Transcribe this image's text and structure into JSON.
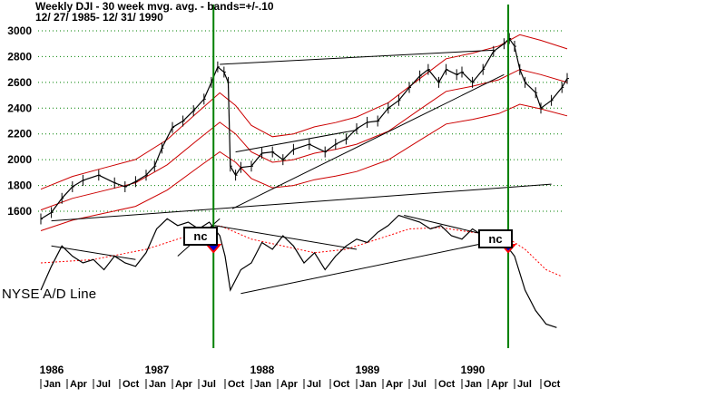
{
  "chart_data": [
    {
      "type": "line",
      "title": "Weekly DJI - 30 week mvg. avg. - bands=+/-.10",
      "subtitle": "12/ 27/ 1985- 12/ 31/ 1990",
      "series": [
        {
          "values": [
            [
              1986.0,
              1540
            ],
            [
              1986.1,
              1590
            ],
            [
              1986.2,
              1700
            ],
            [
              1986.3,
              1790
            ],
            [
              1986.4,
              1840
            ],
            [
              1986.55,
              1880
            ],
            [
              1986.7,
              1820
            ],
            [
              1986.8,
              1790
            ],
            [
              1986.9,
              1830
            ],
            [
              1987.0,
              1880
            ],
            [
              1987.08,
              1950
            ],
            [
              1987.15,
              2090
            ],
            [
              1987.25,
              2250
            ],
            [
              1987.35,
              2300
            ],
            [
              1987.45,
              2380
            ],
            [
              1987.55,
              2470
            ],
            [
              1987.62,
              2600
            ],
            [
              1987.68,
              2720
            ],
            [
              1987.74,
              2680
            ],
            [
              1987.78,
              2600
            ],
            [
              1987.8,
              1950
            ],
            [
              1987.85,
              1880
            ],
            [
              1987.9,
              1940
            ],
            [
              1988.0,
              1950
            ],
            [
              1988.1,
              2050
            ],
            [
              1988.2,
              2060
            ],
            [
              1988.3,
              2000
            ],
            [
              1988.4,
              2080
            ],
            [
              1988.55,
              2120
            ],
            [
              1988.7,
              2060
            ],
            [
              1988.8,
              2120
            ],
            [
              1988.9,
              2160
            ],
            [
              1989.0,
              2240
            ],
            [
              1989.1,
              2290
            ],
            [
              1989.2,
              2300
            ],
            [
              1989.3,
              2400
            ],
            [
              1989.4,
              2460
            ],
            [
              1989.5,
              2560
            ],
            [
              1989.6,
              2650
            ],
            [
              1989.68,
              2700
            ],
            [
              1989.78,
              2600
            ],
            [
              1989.85,
              2700
            ],
            [
              1989.95,
              2660
            ],
            [
              1990.0,
              2680
            ],
            [
              1990.1,
              2600
            ],
            [
              1990.2,
              2700
            ],
            [
              1990.3,
              2840
            ],
            [
              1990.4,
              2900
            ],
            [
              1990.45,
              2940
            ],
            [
              1990.5,
              2880
            ],
            [
              1990.55,
              2700
            ],
            [
              1990.6,
              2600
            ],
            [
              1990.7,
              2520
            ],
            [
              1990.75,
              2400
            ],
            [
              1990.85,
              2460
            ],
            [
              1990.95,
              2560
            ],
            [
              1991.0,
              2630
            ]
          ]
        },
        {
          "values": [
            [
              1986.0,
              1610
            ],
            [
              1986.3,
              1700
            ],
            [
              1986.6,
              1760
            ],
            [
              1986.9,
              1820
            ],
            [
              1987.2,
              1960
            ],
            [
              1987.5,
              2160
            ],
            [
              1987.7,
              2290
            ],
            [
              1987.85,
              2200
            ],
            [
              1988.0,
              2060
            ],
            [
              1988.2,
              1980
            ],
            [
              1988.4,
              2000
            ],
            [
              1988.6,
              2050
            ],
            [
              1988.8,
              2080
            ],
            [
              1989.0,
              2120
            ],
            [
              1989.3,
              2220
            ],
            [
              1989.6,
              2390
            ],
            [
              1989.85,
              2530
            ],
            [
              1990.1,
              2570
            ],
            [
              1990.35,
              2620
            ],
            [
              1990.55,
              2700
            ],
            [
              1990.75,
              2660
            ],
            [
              1991.0,
              2600
            ]
          ]
        },
        {
          "values": [
            [
              1986.0,
              1771
            ],
            [
              1986.3,
              1870
            ],
            [
              1986.6,
              1936
            ],
            [
              1986.9,
              2002
            ],
            [
              1987.2,
              2156
            ],
            [
              1987.5,
              2376
            ],
            [
              1987.7,
              2519
            ],
            [
              1987.85,
              2420
            ],
            [
              1988.0,
              2266
            ],
            [
              1988.2,
              2178
            ],
            [
              1988.4,
              2200
            ],
            [
              1988.6,
              2255
            ],
            [
              1988.8,
              2288
            ],
            [
              1989.0,
              2332
            ],
            [
              1989.3,
              2442
            ],
            [
              1989.6,
              2629
            ],
            [
              1989.85,
              2783
            ],
            [
              1990.1,
              2827
            ],
            [
              1990.35,
              2882
            ],
            [
              1990.55,
              2970
            ],
            [
              1990.75,
              2926
            ],
            [
              1991.0,
              2860
            ]
          ]
        },
        {
          "values": [
            [
              1986.0,
              1449
            ],
            [
              1986.3,
              1530
            ],
            [
              1986.6,
              1584
            ],
            [
              1986.9,
              1638
            ],
            [
              1987.2,
              1764
            ],
            [
              1987.5,
              1944
            ],
            [
              1987.7,
              2061
            ],
            [
              1987.85,
              1980
            ],
            [
              1988.0,
              1854
            ],
            [
              1988.2,
              1782
            ],
            [
              1988.4,
              1800
            ],
            [
              1988.6,
              1845
            ],
            [
              1988.8,
              1872
            ],
            [
              1989.0,
              1908
            ],
            [
              1989.3,
              1998
            ],
            [
              1989.6,
              2151
            ],
            [
              1989.85,
              2277
            ],
            [
              1990.1,
              2313
            ],
            [
              1990.35,
              2358
            ],
            [
              1990.55,
              2430
            ],
            [
              1990.75,
              2394
            ],
            [
              1991.0,
              2340
            ]
          ]
        }
      ],
      "ylim": [
        1500,
        3050
      ],
      "yticks": [
        1600,
        1800,
        2000,
        2200,
        2400,
        2600,
        2800,
        3000
      ],
      "xlim": [
        1985.75,
        1991.0
      ],
      "grid": "horizontal dotted green"
    },
    {
      "type": "line",
      "ylabel": "NYSE A/D Line",
      "series": [
        {
          "values": [
            [
              1986.0,
              -20
            ],
            [
              1986.1,
              15
            ],
            [
              1986.2,
              45
            ],
            [
              1986.3,
              30
            ],
            [
              1986.4,
              20
            ],
            [
              1986.5,
              25
            ],
            [
              1986.6,
              10
            ],
            [
              1986.7,
              30
            ],
            [
              1986.8,
              20
            ],
            [
              1986.9,
              15
            ],
            [
              1987.0,
              35
            ],
            [
              1987.1,
              70
            ],
            [
              1987.2,
              85
            ],
            [
              1987.3,
              75
            ],
            [
              1987.4,
              80
            ],
            [
              1987.5,
              70
            ],
            [
              1987.6,
              80
            ],
            [
              1987.7,
              60
            ],
            [
              1987.75,
              30
            ],
            [
              1987.8,
              -20
            ],
            [
              1987.9,
              10
            ],
            [
              1988.0,
              20
            ],
            [
              1988.1,
              50
            ],
            [
              1988.2,
              40
            ],
            [
              1988.3,
              60
            ],
            [
              1988.4,
              45
            ],
            [
              1988.5,
              20
            ],
            [
              1988.6,
              35
            ],
            [
              1988.7,
              10
            ],
            [
              1988.8,
              30
            ],
            [
              1988.9,
              45
            ],
            [
              1989.0,
              55
            ],
            [
              1989.1,
              50
            ],
            [
              1989.2,
              65
            ],
            [
              1989.3,
              75
            ],
            [
              1989.4,
              90
            ],
            [
              1989.5,
              85
            ],
            [
              1989.6,
              80
            ],
            [
              1989.7,
              70
            ],
            [
              1989.8,
              75
            ],
            [
              1989.9,
              60
            ],
            [
              1990.0,
              55
            ],
            [
              1990.1,
              70
            ],
            [
              1990.2,
              60
            ],
            [
              1990.3,
              65
            ],
            [
              1990.4,
              50
            ],
            [
              1990.5,
              30
            ],
            [
              1990.6,
              -20
            ],
            [
              1990.7,
              -50
            ],
            [
              1990.8,
              -70
            ],
            [
              1990.9,
              -75
            ]
          ]
        },
        {
          "values": [
            [
              1986.0,
              20
            ],
            [
              1986.5,
              25
            ],
            [
              1987.0,
              40
            ],
            [
              1987.4,
              60
            ],
            [
              1987.7,
              75
            ],
            [
              1988.0,
              55
            ],
            [
              1988.3,
              45
            ],
            [
              1988.6,
              35
            ],
            [
              1988.9,
              40
            ],
            [
              1989.2,
              55
            ],
            [
              1989.5,
              70
            ],
            [
              1989.8,
              72
            ],
            [
              1990.1,
              65
            ],
            [
              1990.4,
              60
            ],
            [
              1990.6,
              40
            ],
            [
              1990.8,
              10
            ],
            [
              1990.95,
              0
            ]
          ]
        }
      ]
    }
  ],
  "labels": {
    "indicator": "NYSE A/D Line",
    "nc_1": "nc",
    "nc_2": "nc"
  },
  "x_axis": {
    "years": [
      "1986",
      "1987",
      "1988",
      "1989",
      "1990"
    ],
    "months": [
      "Jan",
      "Apr",
      "Jul",
      "Oct"
    ]
  },
  "colors": {
    "price": "#000000",
    "bands": "#cc0000",
    "ad_ma": "#ff0000",
    "signal_lines": "#008000",
    "grid": "#008000",
    "nc_marker_fill": "#0000cc",
    "nc_marker_outline": "#ff0000"
  }
}
